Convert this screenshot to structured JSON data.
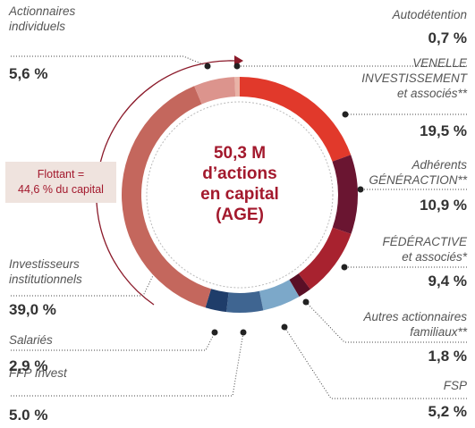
{
  "chart_data": {
    "type": "donut",
    "center_label": "50,3 M\nd’actions\nen capital\n(AGE)",
    "annotation": "Flottant =\n44,6 % du capital",
    "categories": [
      "Autodétention",
      "VENELLE\nINVESTISSEMENT\net associés**",
      "Adhérents\nGÉNÉRACTION**",
      "FÉDÉRACTIVE\net associés*",
      "Autres actionnaires\nfamiliaux**",
      "FSP",
      "FFP Invest",
      "Salariés",
      "Investisseurs\ninstitutionnels",
      "Actionnaires\nindividuels"
    ],
    "values": [
      0.7,
      19.5,
      10.9,
      9.4,
      1.8,
      5.2,
      5.0,
      2.9,
      39.0,
      5.6
    ],
    "value_labels": [
      "0,7 %",
      "19,5 %",
      "10,9 %",
      "9,4 %",
      "1,8 %",
      "5,2 %",
      "5.0 %",
      "2,9 %",
      "39,0 %",
      "5,6 %"
    ],
    "colors": [
      "#e9b3a7",
      "#e1392b",
      "#6a1531",
      "#a8222f",
      "#5a0f26",
      "#7ca8c9",
      "#3f6591",
      "#1f3d6a",
      "#c4675d",
      "#dc948d"
    ]
  }
}
